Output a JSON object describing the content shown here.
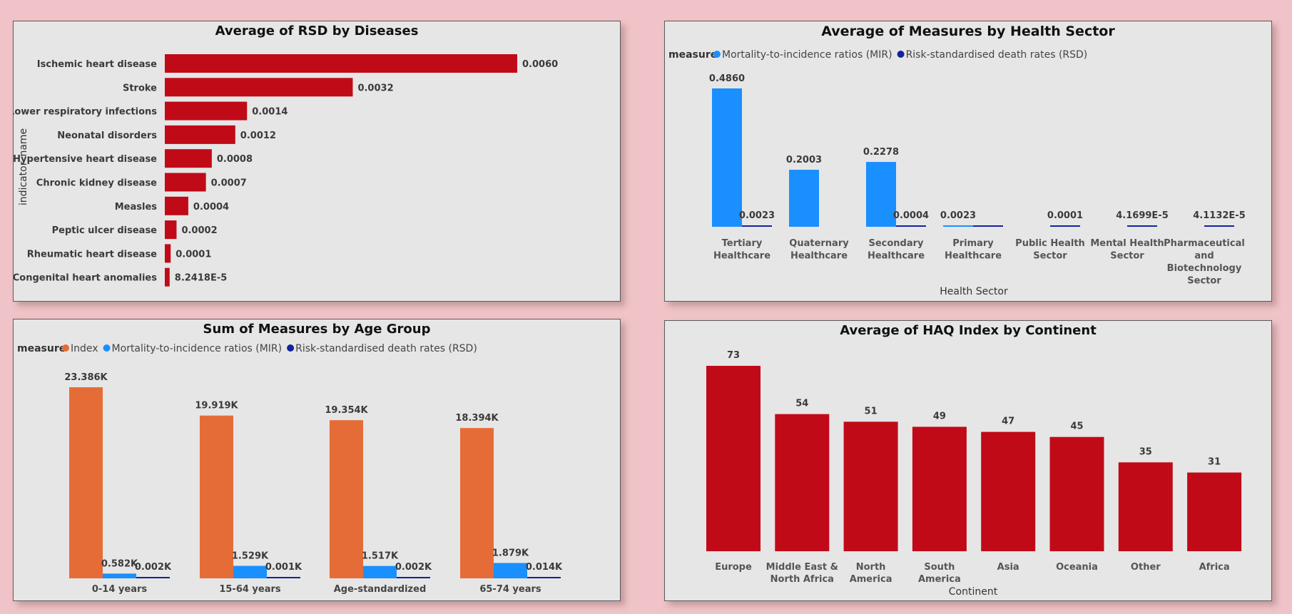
{
  "colors": {
    "red": "#c10a18",
    "blue": "#1a8fff",
    "navy": "#12239e",
    "orange": "#e66c37",
    "panel": "#e6e6e6",
    "background": "#efc3c7"
  },
  "chart_data": [
    {
      "id": "rsd_by_disease",
      "type": "bar",
      "orientation": "horizontal",
      "title": "Average of RSD by Diseases",
      "ylabel": "indicator_name",
      "xlabel": "",
      "categories": [
        "Ischemic heart disease",
        "Stroke",
        "Lower respiratory infections",
        "Neonatal disorders",
        "Hypertensive heart disease",
        "Chronic kidney disease",
        "Measles",
        "Peptic ulcer disease",
        "Rheumatic heart disease",
        "Congenital heart anomalies"
      ],
      "values": [
        0.006,
        0.0032,
        0.0014,
        0.0012,
        0.0008,
        0.0007,
        0.0004,
        0.0002,
        0.0001,
        8.2418e-05
      ],
      "labels": [
        "0.0060",
        "0.0032",
        "0.0014",
        "0.0012",
        "0.0008",
        "0.0007",
        "0.0004",
        "0.0002",
        "0.0001",
        "8.2418E-5"
      ],
      "color": "#c10a18",
      "grid": false
    },
    {
      "id": "measures_by_sector",
      "type": "bar",
      "title": "Average of Measures by Health Sector",
      "xlabel": "Health Sector",
      "ylabel": "",
      "legend_title": "measure",
      "legend_position": "top-left",
      "categories": [
        [
          "Tertiary",
          "Healthcare"
        ],
        [
          "Quaternary",
          "Healthcare"
        ],
        [
          "Secondary",
          "Healthcare"
        ],
        [
          "Primary",
          "Healthcare"
        ],
        [
          "Public Health",
          "Sector"
        ],
        [
          "Mental Health",
          "Sector"
        ],
        [
          "Pharmaceutical",
          "and",
          "Biotechnology",
          "Sector"
        ]
      ],
      "series": [
        {
          "name": "Mortality-to-incidence ratios (MIR)",
          "color": "#1a8fff",
          "values": [
            0.486,
            0.2003,
            0.2278,
            0.0023,
            null,
            null,
            null
          ],
          "labels": [
            "0.4860",
            "0.2003",
            "0.2278",
            "0.0023",
            "",
            "",
            ""
          ]
        },
        {
          "name": "Risk-standardised death rates (RSD)",
          "color": "#12239e",
          "values": [
            0.0023,
            null,
            0.0004,
            0.0023,
            0.0001,
            4.1699e-05,
            4.1132e-05
          ],
          "labels": [
            "0.0023",
            "",
            "0.0004",
            "",
            "0.0001",
            "4.1699E-5",
            "4.1132E-5"
          ]
        }
      ],
      "grid": false
    },
    {
      "id": "measures_by_age",
      "type": "bar",
      "title": "Sum of Measures by Age Group",
      "xlabel": "",
      "ylabel": "",
      "legend_title": "measure",
      "legend_position": "top-left",
      "categories": [
        "0-14 years",
        "15-64 years",
        "Age-standardized",
        "65-74 years"
      ],
      "series": [
        {
          "name": "Index",
          "color": "#e66c37",
          "values": [
            23386,
            19919,
            19354,
            18394
          ],
          "labels": [
            "23.386K",
            "19.919K",
            "19.354K",
            "18.394K"
          ]
        },
        {
          "name": "Mortality-to-incidence ratios (MIR)",
          "color": "#1a8fff",
          "values": [
            582,
            1529,
            1517,
            1879
          ],
          "labels": [
            "0.582K",
            "1.529K",
            "1.517K",
            "1.879K"
          ]
        },
        {
          "name": "Risk-standardised death rates (RSD)",
          "color": "#12239e",
          "values": [
            2,
            1,
            2,
            14
          ],
          "labels": [
            "0.002K",
            "0.001K",
            "0.002K",
            "0.014K"
          ]
        }
      ],
      "grid": false
    },
    {
      "id": "haq_by_continent",
      "type": "bar",
      "title": "Average of HAQ Index by Continent",
      "xlabel": "Continent",
      "ylabel": "",
      "categories": [
        [
          "Europe"
        ],
        [
          "Middle East &",
          "North Africa"
        ],
        [
          "North",
          "America"
        ],
        [
          "South",
          "America"
        ],
        [
          "Asia"
        ],
        [
          "Oceania"
        ],
        [
          "Other"
        ],
        [
          "Africa"
        ]
      ],
      "values": [
        73,
        54,
        51,
        49,
        47,
        45,
        35,
        31
      ],
      "labels": [
        "73",
        "54",
        "51",
        "49",
        "47",
        "45",
        "35",
        "31"
      ],
      "color": "#c10a18",
      "grid": false
    }
  ]
}
